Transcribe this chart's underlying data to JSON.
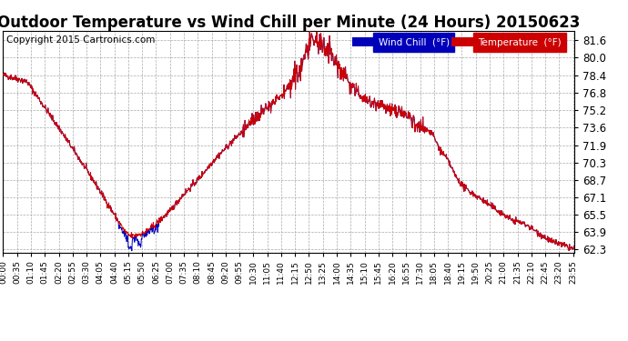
{
  "title": "Outdoor Temperature vs Wind Chill per Minute (24 Hours) 20150623",
  "copyright": "Copyright 2015 Cartronics.com",
  "ylim": [
    62.0,
    82.5
  ],
  "yticks": [
    62.3,
    63.9,
    65.5,
    67.1,
    68.7,
    70.3,
    71.9,
    73.6,
    75.2,
    76.8,
    78.4,
    80.0,
    81.6
  ],
  "legend_labels": [
    "Wind Chill  (°F)",
    "Temperature  (°F)"
  ],
  "legend_colors_bg": [
    "#0000bb",
    "#cc0000"
  ],
  "temp_color": "#cc0000",
  "wind_color": "#0000bb",
  "bg_color": "#ffffff",
  "grid_color": "#aaaaaa",
  "title_fontsize": 12,
  "copyright_fontsize": 7.5,
  "xtick_interval_min": 35,
  "total_minutes": 1440
}
